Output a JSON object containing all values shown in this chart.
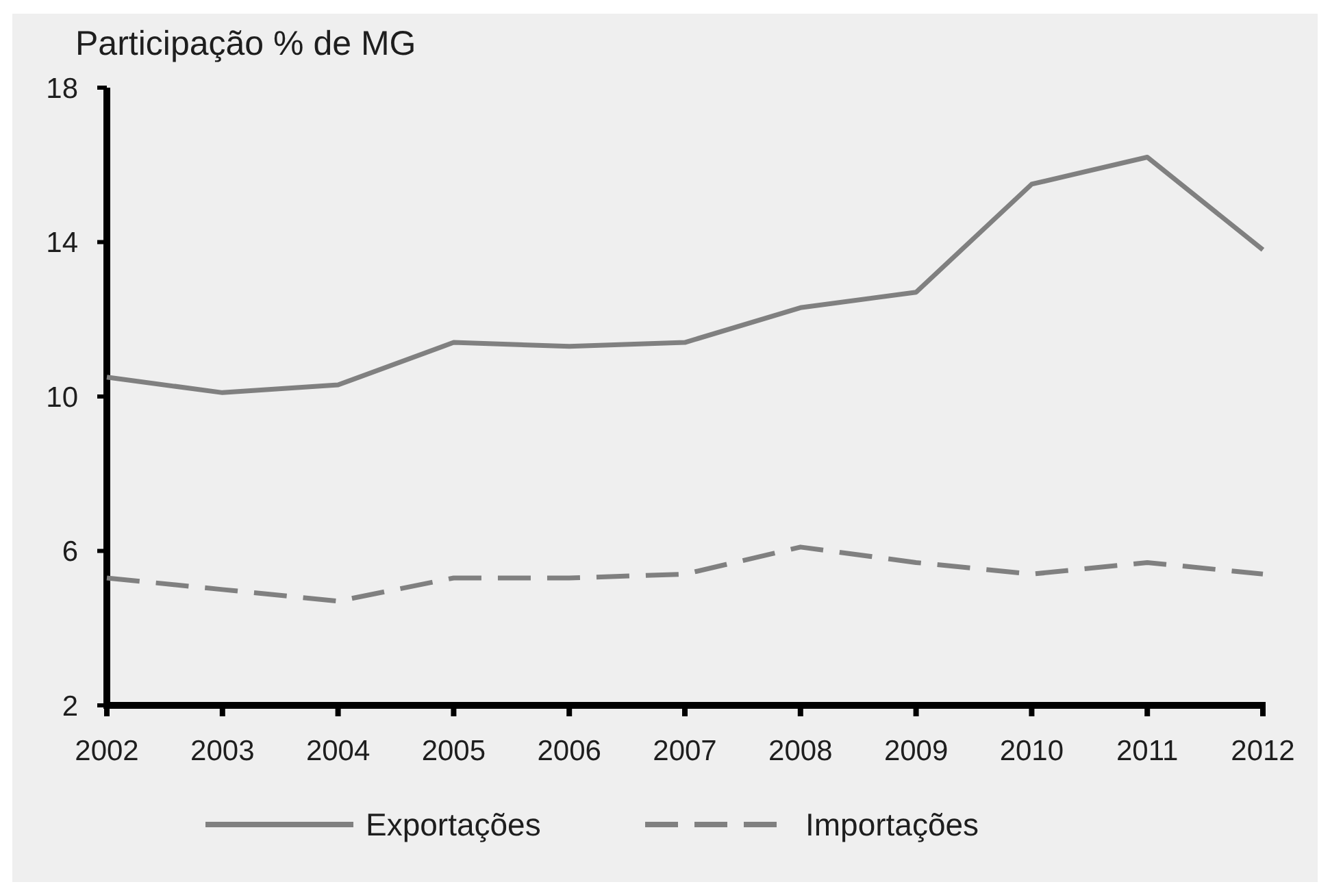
{
  "chart_data": {
    "type": "line",
    "title": "Participação % de MG",
    "categories": [
      "2002",
      "2003",
      "2004",
      "2005",
      "2006",
      "2007",
      "2008",
      "2009",
      "2010",
      "2011",
      "2012"
    ],
    "series": [
      {
        "name": "Exportações",
        "color": "#808080",
        "line_style": "solid",
        "values": [
          10.5,
          10.1,
          10.3,
          11.4,
          11.3,
          11.4,
          12.3,
          12.7,
          15.5,
          16.2,
          13.8
        ]
      },
      {
        "name": "Importações",
        "color": "#808080",
        "line_style": "dashed",
        "values": [
          5.3,
          5.0,
          4.7,
          5.3,
          5.3,
          5.4,
          6.1,
          5.7,
          5.4,
          5.7,
          5.4
        ]
      }
    ],
    "ylim": [
      2,
      18
    ],
    "yticks": [
      2,
      6,
      10,
      14,
      18
    ],
    "grid": false,
    "legend": "bottom",
    "marker": "none"
  }
}
